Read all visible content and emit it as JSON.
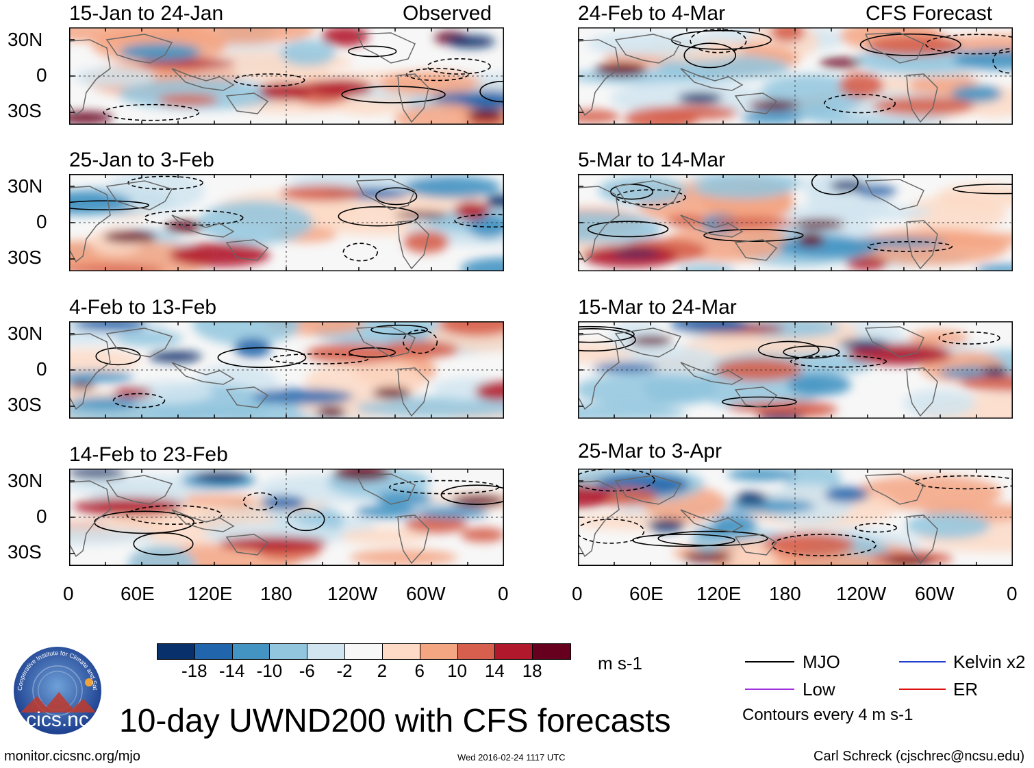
{
  "chart_data": {
    "type": "heatmap",
    "variable": "UWND200",
    "title": "10-day UWND200 with CFS forecasts",
    "units": "m s-1",
    "observed_label": "Observed",
    "forecast_label": "CFS Forecast",
    "panels_left": [
      {
        "period": "15-Jan to 24-Jan"
      },
      {
        "period": "25-Jan to 3-Feb"
      },
      {
        "period": "4-Feb to 13-Feb"
      },
      {
        "period": "14-Feb to 23-Feb"
      }
    ],
    "panels_right": [
      {
        "period": "24-Feb to 4-Mar"
      },
      {
        "period": "5-Mar to 14-Mar"
      },
      {
        "period": "15-Mar to 24-Mar"
      },
      {
        "period": "25-Mar to 3-Apr"
      }
    ],
    "y_ticks": [
      "30N",
      "0",
      "30S"
    ],
    "x_ticks": [
      "0",
      "60E",
      "120E",
      "180",
      "120W",
      "60W",
      "0"
    ],
    "colorbar": {
      "ticks": [
        "-18",
        "-14",
        "-10",
        "-6",
        "-2",
        "2",
        "6",
        "10",
        "14",
        "18"
      ],
      "colors": [
        "#08306b",
        "#2166ac",
        "#4393c3",
        "#92c5de",
        "#d1e5f0",
        "#f7f7f7",
        "#fddbc7",
        "#f4a582",
        "#d6604d",
        "#b2182b",
        "#67001f"
      ]
    },
    "legend": [
      {
        "label": "MJO",
        "color": "#000000"
      },
      {
        "label": "Kelvin x2",
        "color": "#1f3fd0"
      },
      {
        "label": "Low",
        "color": "#a030e0"
      },
      {
        "label": "ER",
        "color": "#dd1010"
      }
    ],
    "contour_note": "Contours every 4 m s-1"
  },
  "logo": {
    "text": "cics.nc",
    "ring_text": "Cooperative Institute for Climate and Satellites"
  },
  "footer": {
    "site": "monitor.cicsnc.org/mjo",
    "timestamp": "Wed 2016-02-24 1117 UTC",
    "author": "Carl Schreck (cjschrec@ncsu.edu)"
  }
}
